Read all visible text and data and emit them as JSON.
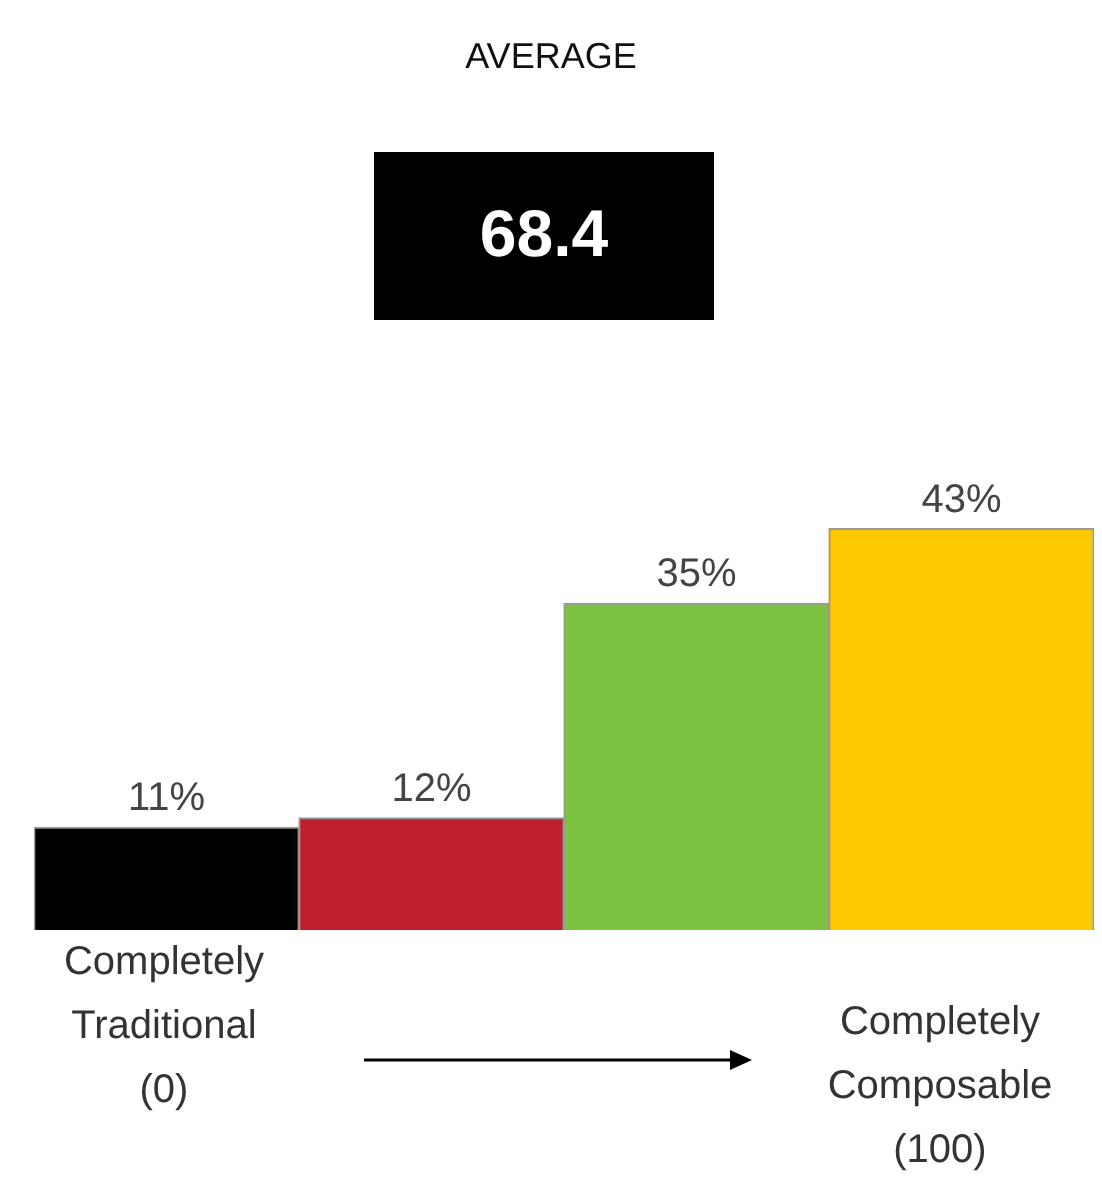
{
  "chart_data": {
    "type": "bar",
    "annotations": [
      "AVERAGE",
      "68.4",
      "Completely Traditional (0)",
      "Completely Composable (100)"
    ],
    "categories": [
      null,
      null,
      null,
      null
    ],
    "values": [
      11,
      12,
      35,
      43
    ],
    "colors": [
      "#000000",
      "#c0202e",
      "#7cc242",
      "#fcc800"
    ],
    "value_labels": [
      "11%",
      "12%",
      "35%",
      "43%"
    ],
    "tick_labels": false,
    "grid": false,
    "legend": false
  }
}
